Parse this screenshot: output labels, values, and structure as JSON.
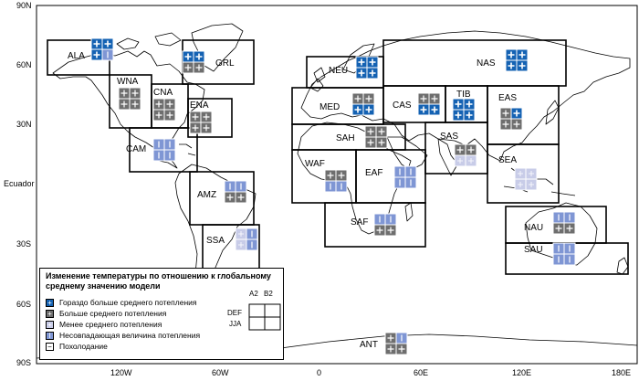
{
  "axes": {
    "lat_labels": [
      "90N",
      "60N",
      "30N",
      "Ecuador",
      "30S",
      "60S",
      "90S"
    ],
    "lon_labels": [
      "120W",
      "60W",
      "0",
      "60E",
      "120E",
      "180E"
    ]
  },
  "colors": {
    "much_greater": "#1462b3",
    "greater": "#6e6e6e",
    "less": "#c8cce8",
    "inconsistent": "#7f96d4",
    "cooling": "#ffffff",
    "border": "#ffffff"
  },
  "regions": [
    {
      "code": "ALA",
      "cells": [
        "much_greater",
        "much_greater",
        "much_greater",
        "inconsistent"
      ]
    },
    {
      "code": "GRL",
      "cells": [
        "much_greater",
        "much_greater",
        "greater",
        "greater"
      ]
    },
    {
      "code": "WNA",
      "cells": [
        "greater",
        "greater",
        "greater",
        "greater"
      ]
    },
    {
      "code": "CNA",
      "cells": [
        "greater",
        "greater",
        "greater",
        "greater"
      ]
    },
    {
      "code": "ENA",
      "cells": [
        "greater",
        "greater",
        "greater",
        "greater"
      ]
    },
    {
      "code": "CAM",
      "cells": [
        "inconsistent",
        "inconsistent",
        "inconsistent",
        "inconsistent"
      ]
    },
    {
      "code": "AMZ",
      "cells": [
        "inconsistent",
        "inconsistent",
        "greater",
        "greater"
      ]
    },
    {
      "code": "SSA",
      "cells": [
        "less",
        "inconsistent",
        "less",
        "inconsistent"
      ]
    },
    {
      "code": "NEU",
      "cells": [
        "much_greater",
        "much_greater",
        "much_greater",
        "much_greater"
      ]
    },
    {
      "code": "MED",
      "cells": [
        "greater",
        "greater",
        "much_greater",
        "much_greater"
      ]
    },
    {
      "code": "SAH",
      "cells": [
        "greater",
        "greater",
        "greater",
        "greater"
      ]
    },
    {
      "code": "WAF",
      "cells": [
        "greater",
        "greater",
        "inconsistent",
        "inconsistent"
      ]
    },
    {
      "code": "EAF",
      "cells": [
        "inconsistent",
        "inconsistent",
        "inconsistent",
        "inconsistent"
      ]
    },
    {
      "code": "SAF",
      "cells": [
        "inconsistent",
        "inconsistent",
        "greater",
        "greater"
      ]
    },
    {
      "code": "NAS",
      "cells": [
        "much_greater",
        "much_greater",
        "much_greater",
        "much_greater"
      ]
    },
    {
      "code": "CAS",
      "cells": [
        "greater",
        "greater",
        "much_greater",
        "much_greater"
      ]
    },
    {
      "code": "TIB",
      "cells": [
        "much_greater",
        "much_greater",
        "much_greater",
        "much_greater"
      ]
    },
    {
      "code": "EAS",
      "cells": [
        "greater",
        "much_greater",
        "greater",
        "greater"
      ]
    },
    {
      "code": "SAS",
      "cells": [
        "greater",
        "greater",
        "less",
        "less"
      ]
    },
    {
      "code": "SEA",
      "cells": [
        "less",
        "less",
        "less",
        "less"
      ]
    },
    {
      "code": "NAU",
      "cells": [
        "inconsistent",
        "inconsistent",
        "greater",
        "greater"
      ]
    },
    {
      "code": "SAU",
      "cells": [
        "inconsistent",
        "inconsistent",
        "inconsistent",
        "inconsistent"
      ]
    },
    {
      "code": "ANT",
      "cells": [
        "greater",
        "inconsistent",
        "greater",
        "greater"
      ]
    }
  ],
  "legend": {
    "title": "Изменение температуры по отношению к глобальному среднему значению модели",
    "items": [
      {
        "key": "much_greater",
        "label": "Гораздо больше среднего потепления"
      },
      {
        "key": "greater",
        "label": "Больше среднего потепления"
      },
      {
        "key": "less",
        "label": "Менее среднего потепления"
      },
      {
        "key": "inconsistent",
        "label": "Несовпадающая величина потепления"
      },
      {
        "key": "cooling",
        "label": "Похолодание"
      }
    ],
    "key_cols": [
      "A2",
      "B2"
    ],
    "key_rows": [
      "DEF",
      "JJA"
    ]
  }
}
